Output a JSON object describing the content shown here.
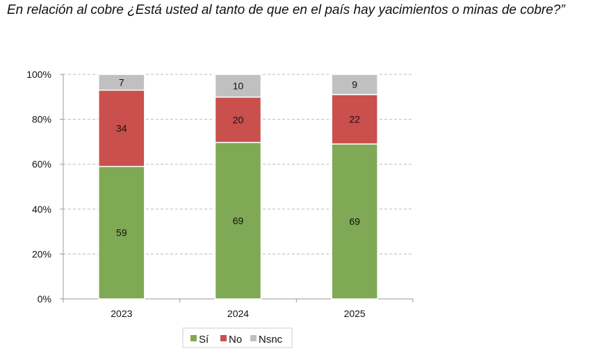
{
  "chart_data": {
    "type": "bar",
    "stacked": true,
    "title": "En relación al cobre ¿Está usted al tanto de que en el país hay yacimientos o minas de cobre?”",
    "xlabel": "",
    "ylabel": "",
    "ylim": [
      0,
      100
    ],
    "yticks": [
      "0%",
      "20%",
      "40%",
      "60%",
      "80%",
      "100%"
    ],
    "categories": [
      "2023",
      "2024",
      "2025"
    ],
    "series": [
      {
        "name": "Sí",
        "color": "#7fa954",
        "values": [
          59,
          69,
          69
        ]
      },
      {
        "name": "No",
        "color": "#c9504d",
        "values": [
          34,
          20,
          22
        ]
      },
      {
        "name": "Nsnc",
        "color": "#c0c0c0",
        "values": [
          7,
          10,
          9
        ]
      }
    ],
    "grid": true,
    "legend_position": "bottom"
  }
}
